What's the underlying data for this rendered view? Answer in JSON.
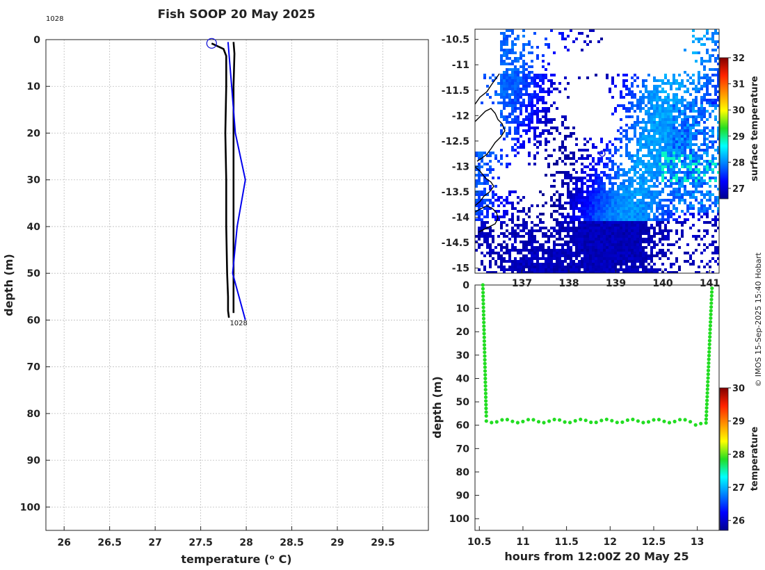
{
  "title": "Fish SOOP 20 May 2025",
  "credit": "© IMOS 15-Sep-2025 15:40 Hobart",
  "chart_data": [
    {
      "id": "profile",
      "type": "line",
      "xlabel": "temperature (ᵒ C)",
      "ylabel": "depth (m)",
      "xlim": [
        25.8,
        30.0
      ],
      "ylim": [
        0,
        105
      ],
      "xticks": [
        26,
        26.5,
        27,
        27.5,
        28,
        28.5,
        29,
        29.5
      ],
      "xtick_labels": [
        "26",
        "26.5",
        "27",
        "27.5",
        "28",
        "28.5",
        "29",
        "29.5"
      ],
      "yticks": [
        0,
        10,
        20,
        30,
        40,
        50,
        60,
        70,
        80,
        90,
        100
      ],
      "grid": true,
      "annotations": [
        {
          "text": "1028",
          "x": 25.8,
          "y": -2.5
        },
        {
          "text": "1028",
          "x": 27.85,
          "y": 60.5
        }
      ],
      "start_marker": {
        "x": 27.62,
        "y": 0.8
      },
      "series": [
        {
          "name": "downcast",
          "color": "#000000",
          "points": [
            [
              27.62,
              0.8
            ],
            [
              27.75,
              2.0
            ],
            [
              27.78,
              3.5
            ],
            [
              27.78,
              10
            ],
            [
              27.77,
              20
            ],
            [
              27.78,
              30
            ],
            [
              27.78,
              40
            ],
            [
              27.79,
              50
            ],
            [
              27.8,
              55
            ],
            [
              27.8,
              58
            ],
            [
              27.81,
              59.5
            ]
          ]
        },
        {
          "name": "upcast",
          "color": "#000000",
          "points": [
            [
              27.86,
              58.5
            ],
            [
              27.86,
              55
            ],
            [
              27.86,
              50
            ],
            [
              27.86,
              40
            ],
            [
              27.86,
              30
            ],
            [
              27.86,
              20
            ],
            [
              27.86,
              10
            ],
            [
              27.87,
              3
            ],
            [
              27.86,
              0.5
            ]
          ]
        },
        {
          "name": "climatology",
          "color": "#0000ee",
          "points": [
            [
              27.8,
              0.5
            ],
            [
              27.84,
              10
            ],
            [
              27.88,
              20
            ],
            [
              27.99,
              30
            ],
            [
              27.9,
              40
            ],
            [
              27.85,
              50
            ],
            [
              27.99,
              60
            ]
          ]
        }
      ]
    },
    {
      "id": "map",
      "type": "heatmap",
      "colorbar_label": "surface temperature",
      "colorbar_ticks": [
        27,
        28,
        29,
        30,
        31,
        32
      ],
      "clim": [
        26.6,
        32.0
      ],
      "xlim": [
        136.0,
        141.2
      ],
      "ylim": [
        -15.1,
        -10.3
      ],
      "xtick_labels": [
        "137",
        "138",
        "139",
        "140",
        "141"
      ],
      "xticks": [
        137,
        138,
        139,
        140,
        141
      ],
      "yticks": [
        -10.5,
        -11,
        -11.5,
        -12,
        -12.5,
        -13,
        -13.5,
        -14,
        -14.5,
        -15
      ],
      "ytick_labels": [
        "-10.5",
        "-11",
        "-11.5",
        "-12",
        "-12.5",
        "-13",
        "-13.5",
        "-14",
        "-14.5",
        "-15"
      ],
      "vessel_position": {
        "lon": 138.9,
        "lat": -12.7
      }
    },
    {
      "id": "timeseries",
      "type": "scatter",
      "xlabel": "hours from 12:00Z 20 May 25",
      "ylabel": "depth (m)",
      "xlim": [
        10.45,
        13.25
      ],
      "ylim": [
        0,
        105
      ],
      "xticks": [
        10.5,
        11,
        11.5,
        12,
        12.5,
        13
      ],
      "xtick_labels": [
        "10.5",
        "11",
        "11.5",
        "12",
        "12.5",
        "13"
      ],
      "yticks": [
        0,
        10,
        20,
        30,
        40,
        50,
        60,
        70,
        80,
        90,
        100
      ],
      "colorbar_label": "temperature",
      "colorbar_ticks": [
        26,
        27,
        28,
        29,
        30
      ],
      "clim": [
        25.7,
        30.0
      ],
      "point_temperature": 27.85,
      "descent": {
        "t": [
          10.54,
          10.58
        ],
        "depth": [
          0,
          57
        ]
      },
      "bottom": {
        "t": [
          10.58,
          13.09
        ],
        "depth": 58.2
      },
      "ascent": {
        "t": [
          13.1,
          13.17
        ],
        "depth": [
          59,
          0
        ]
      }
    }
  ]
}
